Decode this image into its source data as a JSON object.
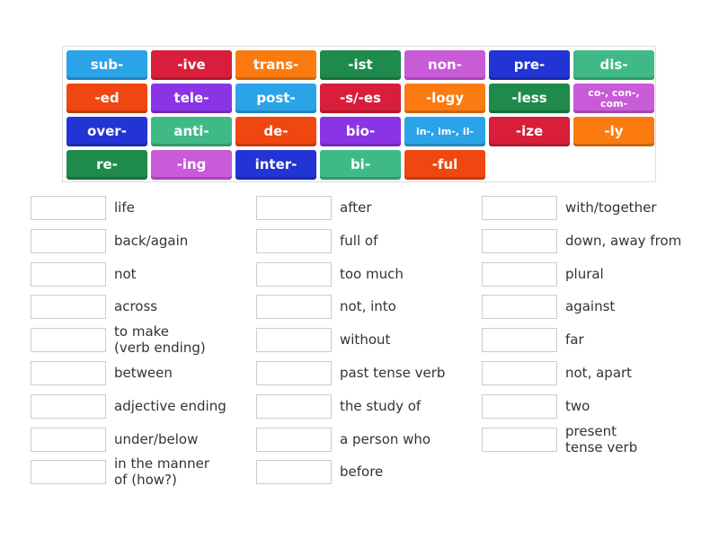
{
  "tiles": [
    {
      "label": "sub-",
      "color": "#2ba3e8"
    },
    {
      "label": "-ive",
      "color": "#d81e3a"
    },
    {
      "label": "trans-",
      "color": "#fb7b10"
    },
    {
      "label": "-ist",
      "color": "#1e8a4c"
    },
    {
      "label": "non-",
      "color": "#c95ad8"
    },
    {
      "label": "pre-",
      "color": "#2234d4"
    },
    {
      "label": "dis-",
      "color": "#3fba87"
    },
    {
      "label": "-ed",
      "color": "#f0460f"
    },
    {
      "label": "tele-",
      "color": "#8a34e6"
    },
    {
      "label": "post-",
      "color": "#2ba3e8"
    },
    {
      "label": "-s/-es",
      "color": "#d81e3a"
    },
    {
      "label": "-logy",
      "color": "#fb7b10"
    },
    {
      "label": "-less",
      "color": "#1e8a4c"
    },
    {
      "label": "co-, con-, com-",
      "color": "#c95ad8"
    },
    {
      "label": "over-",
      "color": "#2234d4"
    },
    {
      "label": "anti-",
      "color": "#3fba87"
    },
    {
      "label": "de-",
      "color": "#f0460f"
    },
    {
      "label": "bio-",
      "color": "#8a34e6"
    },
    {
      "label": "in-, im-, il-",
      "color": "#2ba3e8"
    },
    {
      "label": "-ize",
      "color": "#d81e3a"
    },
    {
      "label": "-ly",
      "color": "#fb7b10"
    },
    {
      "label": "re-",
      "color": "#1e8a4c"
    },
    {
      "label": "-ing",
      "color": "#c95ad8"
    },
    {
      "label": "inter-",
      "color": "#2234d4"
    },
    {
      "label": "bi-",
      "color": "#3fba87"
    },
    {
      "label": "-ful",
      "color": "#f0460f"
    }
  ],
  "columns": [
    [
      "life",
      "back/again",
      "not",
      "across",
      "to make\n(verb ending)",
      "between",
      "adjective ending",
      "under/below",
      "in the manner\nof (how?)"
    ],
    [
      "after",
      "full of",
      "too much",
      "not, into",
      "without",
      "past tense verb",
      "the study of",
      "a person who",
      "before"
    ],
    [
      "with/together",
      "down, away from",
      "plural",
      "against",
      "far",
      "not, apart",
      "two",
      "present\ntense verb"
    ]
  ]
}
